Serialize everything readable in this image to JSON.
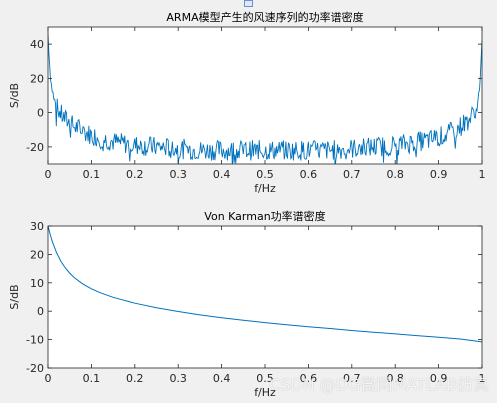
{
  "figure": {
    "background": "#f0f0f0",
    "plot_background": "#ffffff",
    "line_color": "#0072bd",
    "axis_color": "#262626"
  },
  "watermark": "CSDN @DG微网MATLAB仿真",
  "chart_data": [
    {
      "type": "line",
      "title": "ARMA模型产生的风速序列的功率谱密度",
      "xlabel": "f/Hz",
      "ylabel": "S/dB",
      "xlim": [
        0,
        1
      ],
      "ylim": [
        -30,
        50
      ],
      "xticks": [
        0,
        0.1,
        0.2,
        0.3,
        0.4,
        0.5,
        0.6,
        0.7,
        0.8,
        0.9,
        1
      ],
      "xtick_labels": [
        "0",
        "0.1",
        "0.2",
        "0.3",
        "0.4",
        "0.5",
        "0.6",
        "0.7",
        "0.8",
        "0.9",
        "1"
      ],
      "yticks": [
        -20,
        0,
        20,
        40
      ],
      "ytick_labels": [
        "-20",
        "0",
        "20",
        "40"
      ],
      "grid": false,
      "series": [
        {
          "color": "#0072bd",
          "x": [
            0,
            0.005,
            0.01,
            0.015,
            0.02,
            0.03,
            0.04,
            0.05,
            0.06,
            0.07,
            0.08,
            0.1,
            0.12,
            0.15,
            0.2,
            0.25,
            0.3,
            0.35,
            0.4,
            0.45,
            0.5,
            0.55,
            0.6,
            0.65,
            0.7,
            0.75,
            0.8,
            0.85,
            0.88,
            0.9,
            0.92,
            0.93,
            0.94,
            0.95,
            0.96,
            0.97,
            0.98,
            0.985,
            0.99,
            0.995,
            1
          ],
          "y": [
            46,
            22,
            12,
            6,
            3,
            -1,
            -4,
            -6,
            -8,
            -9,
            -11,
            -13,
            -15,
            -17,
            -19,
            -20,
            -21,
            -22,
            -22,
            -22,
            -22,
            -22,
            -22,
            -22,
            -21,
            -20,
            -19,
            -17,
            -16,
            -14,
            -13,
            -11,
            -10,
            -8,
            -6,
            -4,
            -1,
            3,
            7,
            14,
            42
          ]
        }
      ]
    },
    {
      "type": "line",
      "title": "Von Karman功率谱密度",
      "xlabel": "f/Hz",
      "ylabel": "S/dB",
      "xlim": [
        0,
        1
      ],
      "ylim": [
        -20,
        30
      ],
      "xticks": [
        0,
        0.1,
        0.2,
        0.3,
        0.4,
        0.5,
        0.6,
        0.7,
        0.8,
        0.9,
        1
      ],
      "xtick_labels": [
        "0",
        "0.1",
        "0.2",
        "0.3",
        "0.4",
        "0.5",
        "0.6",
        "0.7",
        "0.8",
        "0.9",
        "1"
      ],
      "yticks": [
        -20,
        -10,
        0,
        10,
        20,
        30
      ],
      "ytick_labels": [
        "-20",
        "-10",
        "0",
        "10",
        "20",
        "30"
      ],
      "grid": false,
      "series": [
        {
          "color": "#0072bd",
          "x": [
            0,
            0.005,
            0.01,
            0.015,
            0.02,
            0.03,
            0.04,
            0.05,
            0.06,
            0.08,
            0.1,
            0.12,
            0.15,
            0.2,
            0.25,
            0.3,
            0.35,
            0.4,
            0.45,
            0.5,
            0.55,
            0.6,
            0.65,
            0.7,
            0.75,
            0.8,
            0.85,
            0.9,
            0.95,
            1
          ],
          "y": [
            30,
            27,
            24.5,
            22.5,
            20.5,
            17.5,
            15.2,
            13.4,
            11.9,
            9.6,
            7.9,
            6.5,
            4.9,
            2.8,
            1.2,
            -0.1,
            -1.3,
            -2.3,
            -3.2,
            -4.0,
            -4.8,
            -5.5,
            -6.1,
            -6.8,
            -7.4,
            -8.0,
            -8.6,
            -9.2,
            -9.8,
            -10.8
          ]
        }
      ]
    }
  ]
}
